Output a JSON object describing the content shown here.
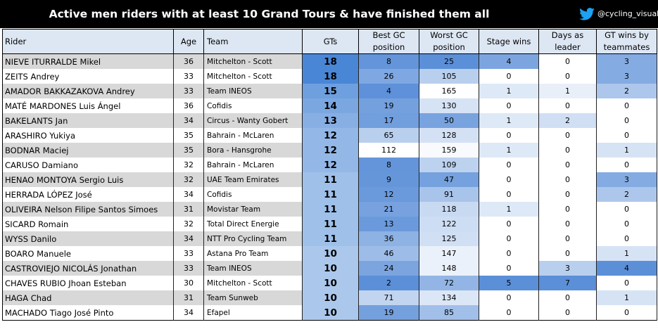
{
  "title": "Active men riders with at least 10 Grand Tours & have finished them all",
  "handle": "@cycling_visual",
  "icon": "twitter-bird-icon",
  "colors": {
    "header_bg": "#dde7f3",
    "title_bg": "#000000",
    "twitter": "#1da1f2"
  },
  "columns": {
    "rider": "Rider",
    "age": "Age",
    "team": "Team",
    "gts": "GTs",
    "best_gc": "Best GC position",
    "worst_gc": "Worst GC position",
    "stage_wins": "Stage wins",
    "days_leader": "Days as leader",
    "gt_wins_teammates": "GT wins by teammates"
  },
  "rows": [
    {
      "rider": "NIEVE ITURRALDE Mikel",
      "age": "36",
      "team": "Mitchelton - Scott",
      "gts": "18",
      "best": "8",
      "worst": "25",
      "stages": "4",
      "days": "0",
      "wins": "3"
    },
    {
      "rider": "ZEITS Andrey",
      "age": "33",
      "team": "Mitchelton - Scott",
      "gts": "18",
      "best": "26",
      "worst": "105",
      "stages": "0",
      "days": "0",
      "wins": "3"
    },
    {
      "rider": "AMADOR BAKKAZAKOVA Andrey",
      "age": "33",
      "team": "Team INEOS",
      "gts": "15",
      "best": "4",
      "worst": "165",
      "stages": "1",
      "days": "1",
      "wins": "2"
    },
    {
      "rider": "MATÉ MARDONES Luis Ángel",
      "age": "36",
      "team": "Cofidis",
      "gts": "14",
      "best": "19",
      "worst": "130",
      "stages": "0",
      "days": "0",
      "wins": "0"
    },
    {
      "rider": "BAKELANTS Jan",
      "age": "34",
      "team": "Circus - Wanty Gobert",
      "gts": "13",
      "best": "17",
      "worst": "50",
      "stages": "1",
      "days": "2",
      "wins": "0"
    },
    {
      "rider": "ARASHIRO Yukiya",
      "age": "35",
      "team": "Bahrain - McLaren",
      "gts": "12",
      "best": "65",
      "worst": "128",
      "stages": "0",
      "days": "0",
      "wins": "0"
    },
    {
      "rider": "BODNAR Maciej",
      "age": "35",
      "team": "Bora - Hansgrohe",
      "gts": "12",
      "best": "112",
      "worst": "159",
      "stages": "1",
      "days": "0",
      "wins": "1"
    },
    {
      "rider": "CARUSO Damiano",
      "age": "32",
      "team": "Bahrain - McLaren",
      "gts": "12",
      "best": "8",
      "worst": "109",
      "stages": "0",
      "days": "0",
      "wins": "0"
    },
    {
      "rider": "HENAO MONTOYA Sergio Luis",
      "age": "32",
      "team": "UAE Team Emirates",
      "gts": "11",
      "best": "9",
      "worst": "47",
      "stages": "0",
      "days": "0",
      "wins": "3"
    },
    {
      "rider": "HERRADA LÓPEZ José",
      "age": "34",
      "team": "Cofidis",
      "gts": "11",
      "best": "12",
      "worst": "91",
      "stages": "0",
      "days": "0",
      "wins": "2"
    },
    {
      "rider": "OLIVEIRA Nelson Filipe Santos Simoes",
      "age": "31",
      "team": "Movistar Team",
      "gts": "11",
      "best": "21",
      "worst": "118",
      "stages": "1",
      "days": "0",
      "wins": "0"
    },
    {
      "rider": "SICARD Romain",
      "age": "32",
      "team": "Total Direct Energie",
      "gts": "11",
      "best": "13",
      "worst": "122",
      "stages": "0",
      "days": "0",
      "wins": "0"
    },
    {
      "rider": "WYSS Danilo",
      "age": "34",
      "team": "NTT Pro Cycling Team",
      "gts": "11",
      "best": "36",
      "worst": "125",
      "stages": "0",
      "days": "0",
      "wins": "0"
    },
    {
      "rider": "BOARO Manuele",
      "age": "33",
      "team": "Astana Pro Team",
      "gts": "10",
      "best": "46",
      "worst": "147",
      "stages": "0",
      "days": "0",
      "wins": "1"
    },
    {
      "rider": "CASTROVIEJO NICOLÁS Jonathan",
      "age": "33",
      "team": "Team INEOS",
      "gts": "10",
      "best": "24",
      "worst": "148",
      "stages": "0",
      "days": "3",
      "wins": "4"
    },
    {
      "rider": "CHAVES RUBIO Jhoan Esteban",
      "age": "30",
      "team": "Mitchelton - Scott",
      "gts": "10",
      "best": "2",
      "worst": "72",
      "stages": "5",
      "days": "7",
      "wins": "0"
    },
    {
      "rider": "HAGA Chad",
      "age": "31",
      "team": "Team Sunweb",
      "gts": "10",
      "best": "71",
      "worst": "134",
      "stages": "0",
      "days": "0",
      "wins": "1"
    },
    {
      "rider": "MACHADO Tiago José Pinto",
      "age": "34",
      "team": "Efapel",
      "gts": "10",
      "best": "19",
      "worst": "85",
      "stages": "0",
      "days": "0",
      "wins": "0"
    }
  ]
}
